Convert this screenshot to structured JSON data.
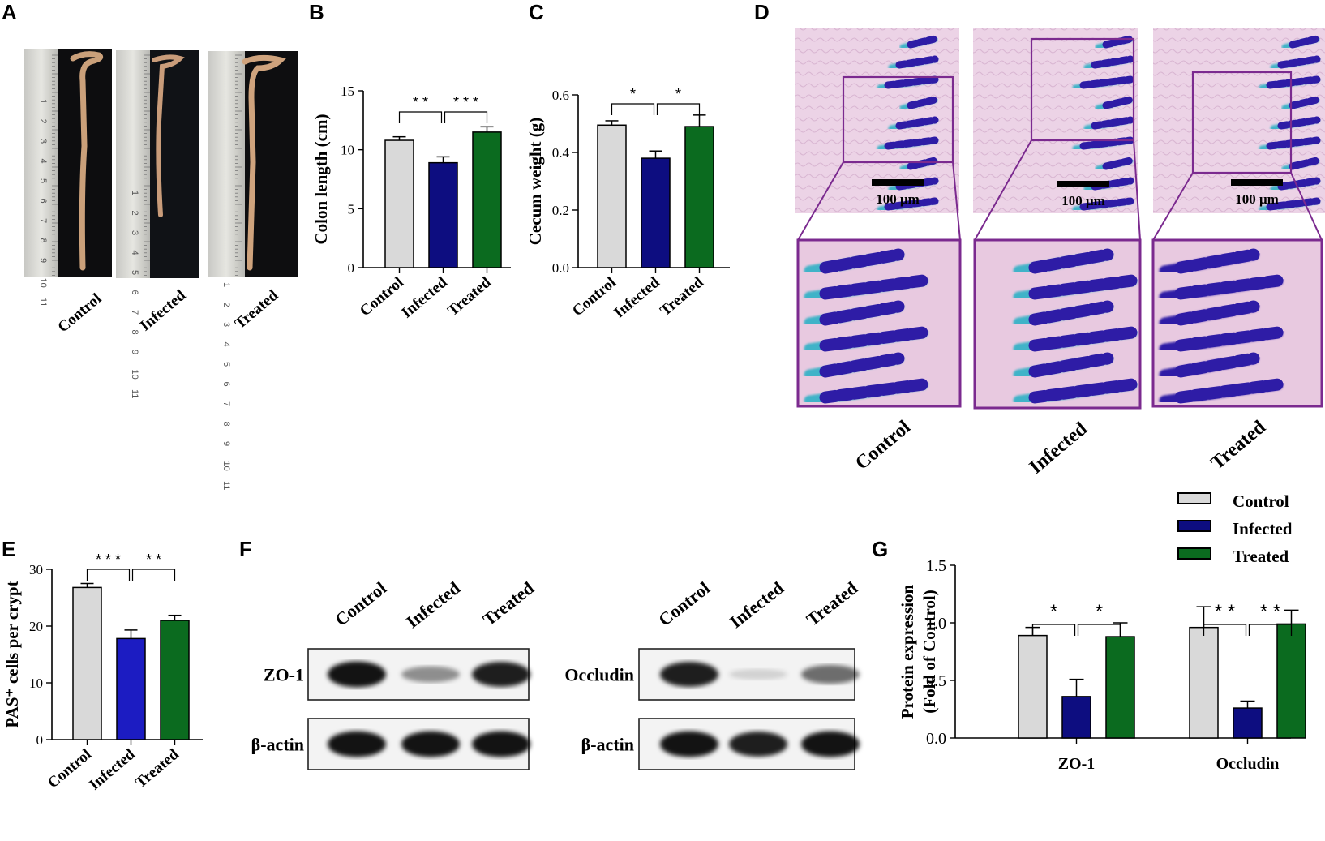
{
  "colors": {
    "control": "#d9d9d9",
    "infected": "#0d0d80",
    "infected_e": "#1c1cc2",
    "treated": "#0b6b1f",
    "frame_purple": "#7b2a8f",
    "stain_background": "#e8c9e0",
    "stain_blue": "#2e1ca6",
    "stain_cyan": "#3fb3c8"
  },
  "panel_letters": [
    "A",
    "B",
    "C",
    "D",
    "E",
    "F",
    "G"
  ],
  "panel_a": {
    "labels": [
      "Control",
      "Infected",
      "Treated"
    ],
    "ruler_numbers": [
      "1",
      "2",
      "3",
      "4",
      "5",
      "6",
      "7",
      "8",
      "9",
      "10",
      "11"
    ]
  },
  "panel_d": {
    "labels": [
      "Control",
      "Infected",
      "Treated"
    ],
    "scale_bar_label": "100 μm"
  },
  "panel_f": {
    "lanes": [
      "Control",
      "Infected",
      "Treated"
    ],
    "left_blot": {
      "target": "ZO-1",
      "loading": "β-actin",
      "target_band_strength": [
        1.0,
        0.45,
        0.95
      ],
      "loading_band_strength": [
        1.0,
        1.0,
        1.0
      ]
    },
    "right_blot": {
      "target": "Occludin",
      "loading": "β-actin",
      "target_band_strength": [
        0.95,
        0.15,
        0.6
      ],
      "loading_band_strength": [
        1.0,
        0.95,
        1.0
      ]
    }
  },
  "legend": {
    "entries": [
      "Control",
      "Infected",
      "Treated"
    ]
  },
  "chart_data": [
    {
      "panel": "B",
      "type": "bar",
      "categories": [
        "Control",
        "Infected",
        "Treated"
      ],
      "values": [
        10.8,
        8.9,
        11.5
      ],
      "errors": [
        0.3,
        0.5,
        0.45
      ],
      "ylabel": "Colon length (cm)",
      "ylim": [
        0,
        15
      ],
      "yticks": [
        "0",
        "5",
        "10",
        "15"
      ],
      "significance": [
        {
          "from": 0,
          "to": 1,
          "label": "* *"
        },
        {
          "from": 1,
          "to": 2,
          "label": "* * *"
        }
      ]
    },
    {
      "panel": "C",
      "type": "bar",
      "categories": [
        "Control",
        "Infected",
        "Treated"
      ],
      "values": [
        0.495,
        0.38,
        0.49
      ],
      "errors": [
        0.015,
        0.025,
        0.04
      ],
      "ylabel": "Cecum weight (g)",
      "ylim": [
        0,
        0.6
      ],
      "yticks": [
        "0.0",
        "0.2",
        "0.4",
        "0.6"
      ],
      "significance": [
        {
          "from": 0,
          "to": 1,
          "label": "*"
        },
        {
          "from": 1,
          "to": 2,
          "label": "*"
        }
      ]
    },
    {
      "panel": "E",
      "type": "bar",
      "categories": [
        "Control",
        "Infected",
        "Treated"
      ],
      "values": [
        26.8,
        17.8,
        21.0
      ],
      "errors": [
        0.7,
        1.5,
        0.9
      ],
      "ylabel": "PAS⁺ cells per crypt",
      "ylim": [
        0,
        30
      ],
      "yticks": [
        "0",
        "10",
        "20",
        "30"
      ],
      "significance": [
        {
          "from": 0,
          "to": 1,
          "label": "* * *"
        },
        {
          "from": 1,
          "to": 2,
          "label": "* *"
        }
      ]
    },
    {
      "panel": "G",
      "type": "bar",
      "categories": [
        "ZO-1",
        "Occludin"
      ],
      "series": [
        {
          "name": "Control",
          "values": [
            0.89,
            0.96
          ],
          "errors": [
            0.07,
            0.18
          ]
        },
        {
          "name": "Infected",
          "values": [
            0.36,
            0.26
          ],
          "errors": [
            0.15,
            0.06
          ]
        },
        {
          "name": "Treated",
          "values": [
            0.88,
            0.99
          ],
          "errors": [
            0.12,
            0.12
          ]
        }
      ],
      "ylabel": "Protein expression",
      "ylabel2": "(Fold of Control)",
      "ylim": [
        0,
        1.5
      ],
      "yticks": [
        "0.0",
        "0.5",
        "1.0",
        "1.5"
      ],
      "legend_position": "top-right",
      "significance": [
        {
          "group": 0,
          "from": 0,
          "to": 1,
          "label": "*"
        },
        {
          "group": 0,
          "from": 1,
          "to": 2,
          "label": "*"
        },
        {
          "group": 1,
          "from": 0,
          "to": 1,
          "label": "* *"
        },
        {
          "group": 1,
          "from": 1,
          "to": 2,
          "label": "* *"
        }
      ]
    }
  ]
}
